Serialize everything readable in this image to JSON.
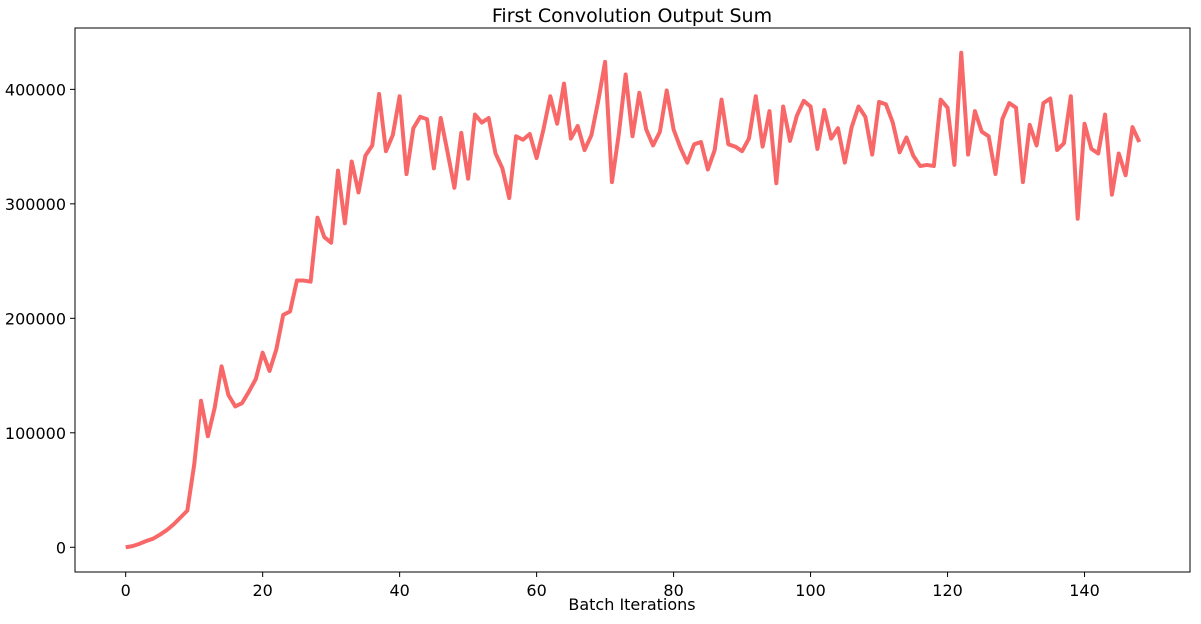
{
  "chart_data": {
    "type": "line",
    "title": "First Convolution Output Sum",
    "x_label": "Batch Iterations",
    "x": [
      0,
      1,
      2,
      3,
      4,
      5,
      6,
      7,
      8,
      9,
      10,
      11,
      12,
      13,
      14,
      15,
      16,
      17,
      18,
      19,
      20,
      21,
      22,
      23,
      24,
      25,
      26,
      27,
      28,
      29,
      30,
      31,
      32,
      33,
      34,
      35,
      36,
      37,
      38,
      39,
      40,
      41,
      42,
      43,
      44,
      45,
      46,
      47,
      48,
      49,
      50,
      51,
      52,
      53,
      54,
      55,
      56,
      57,
      58,
      59,
      60,
      61,
      62,
      63,
      64,
      65,
      66,
      67,
      68,
      69,
      70,
      71,
      72,
      73,
      74,
      75,
      76,
      77,
      78,
      79,
      80,
      81,
      82,
      83,
      84,
      85,
      86,
      87,
      88,
      89,
      90,
      91,
      92,
      93,
      94,
      95,
      96,
      97,
      98,
      99,
      100,
      101,
      102,
      103,
      104,
      105,
      106,
      107,
      108,
      109,
      110,
      111,
      112,
      113,
      114,
      115,
      116,
      117,
      118,
      119,
      120,
      121,
      122,
      123,
      124,
      125,
      126,
      127,
      128,
      129,
      130,
      131,
      132,
      133,
      134,
      135,
      136,
      137,
      138,
      139,
      140,
      141,
      142,
      143,
      144,
      145,
      146,
      147,
      148
    ],
    "values": [
      0,
      1000,
      3000,
      5500,
      7500,
      11000,
      15000,
      20000,
      26000,
      32000,
      72000,
      128000,
      97000,
      122000,
      158000,
      133000,
      123000,
      126000,
      136000,
      147000,
      170000,
      154000,
      173000,
      203000,
      206000,
      233000,
      233000,
      232000,
      288000,
      271000,
      266000,
      329000,
      283000,
      337000,
      310000,
      342000,
      351000,
      396000,
      346000,
      360000,
      394000,
      326000,
      366000,
      376000,
      374000,
      331000,
      375000,
      345000,
      314000,
      362000,
      322000,
      378000,
      371000,
      375000,
      344000,
      331000,
      305000,
      359000,
      356000,
      361000,
      340000,
      365000,
      394000,
      370000,
      405000,
      357000,
      368000,
      347000,
      360000,
      390000,
      424000,
      319000,
      361000,
      413000,
      359000,
      397000,
      365000,
      351000,
      363000,
      399000,
      365000,
      349000,
      336000,
      352000,
      354000,
      330000,
      347000,
      391000,
      352000,
      350000,
      346000,
      357000,
      394000,
      350000,
      381000,
      318000,
      385000,
      355000,
      377000,
      390000,
      385000,
      348000,
      382000,
      357000,
      366000,
      336000,
      367000,
      385000,
      376000,
      343000,
      389000,
      387000,
      371000,
      345000,
      358000,
      342000,
      333000,
      334000,
      333000,
      391000,
      384000,
      334000,
      432000,
      343000,
      381000,
      363000,
      359000,
      326000,
      374000,
      388000,
      384000,
      319000,
      369000,
      351000,
      388000,
      392000,
      347000,
      353000,
      394000,
      287000,
      370000,
      348000,
      344000,
      378000,
      308000,
      344000,
      325000,
      367000,
      354000
    ],
    "color": "#f86868",
    "xlim": [
      -7.4,
      155.4
    ],
    "xticks": [
      0,
      20,
      40,
      60,
      80,
      100,
      120,
      140
    ],
    "ylim": [
      -21600,
      453600
    ],
    "yticks": [
      0,
      100000,
      200000,
      300000,
      400000
    ]
  }
}
